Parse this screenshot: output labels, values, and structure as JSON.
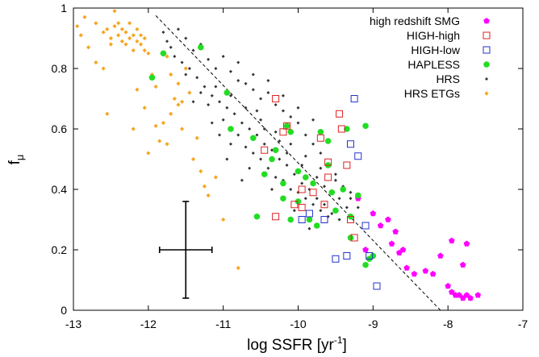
{
  "chart_data": {
    "type": "scatter",
    "xlabel_main": "log SSFR [yr",
    "xlabel_sup": "-1",
    "xlabel_end": "]",
    "ylabel_main": "f",
    "ylabel_sub": "μ",
    "xlim": [
      -13,
      -7
    ],
    "ylim": [
      0,
      1
    ],
    "xticks": [
      {
        "v": -13,
        "label": "-13"
      },
      {
        "v": -12,
        "label": "-12"
      },
      {
        "v": -11,
        "label": "-11"
      },
      {
        "v": -10,
        "label": "-10"
      },
      {
        "v": -9,
        "label": "-9"
      },
      {
        "v": -8,
        "label": "-8"
      },
      {
        "v": -7,
        "label": "-7"
      }
    ],
    "yticks": [
      {
        "v": 0,
        "label": "0"
      },
      {
        "v": 0.2,
        "label": "0.2"
      },
      {
        "v": 0.4,
        "label": "0.4"
      },
      {
        "v": 0.6,
        "label": "0.6"
      },
      {
        "v": 0.8,
        "label": "0.8"
      },
      {
        "v": 1,
        "label": "1"
      }
    ],
    "legend_position": "top-right",
    "grid": false,
    "fit_line": {
      "style": "dashed",
      "color": "#000000",
      "x": [
        -11.9,
        -8.1
      ],
      "y": [
        0.975,
        0
      ]
    },
    "error_bar": {
      "x": -11.5,
      "y": 0.2,
      "x_err": 0.35,
      "y_err": 0.16
    },
    "series": [
      {
        "name": "high redshift SMG",
        "marker": "pentagon",
        "color": "#ff00ff",
        "points": [
          [
            -9.2,
            0.37
          ],
          [
            -9.0,
            0.32
          ],
          [
            -8.9,
            0.28
          ],
          [
            -8.8,
            0.3
          ],
          [
            -8.75,
            0.22
          ],
          [
            -8.7,
            0.26
          ],
          [
            -8.65,
            0.19
          ],
          [
            -8.6,
            0.2
          ],
          [
            -8.55,
            0.14
          ],
          [
            -8.45,
            0.12
          ],
          [
            -8.3,
            0.13
          ],
          [
            -8.2,
            0.12
          ],
          [
            -8.0,
            0.08
          ],
          [
            -7.95,
            0.06
          ],
          [
            -7.9,
            0.05
          ],
          [
            -7.85,
            0.05
          ],
          [
            -7.8,
            0.04
          ],
          [
            -7.75,
            0.05
          ],
          [
            -7.7,
            0.04
          ],
          [
            -7.6,
            0.05
          ],
          [
            -7.75,
            0.22
          ],
          [
            -7.8,
            0.15
          ],
          [
            -7.95,
            0.23
          ],
          [
            -8.1,
            0.18
          ],
          [
            -9.1,
            0.2
          ]
        ]
      },
      {
        "name": "HIGH-high",
        "marker": "square-open",
        "color": "#dd2222",
        "points": [
          [
            -10.45,
            0.53
          ],
          [
            -10.3,
            0.7
          ],
          [
            -10.2,
            0.59
          ],
          [
            -10.3,
            0.31
          ],
          [
            -10.05,
            0.35
          ],
          [
            -9.95,
            0.34
          ],
          [
            -9.95,
            0.4
          ],
          [
            -9.8,
            0.39
          ],
          [
            -9.7,
            0.57
          ],
          [
            -9.65,
            0.35
          ],
          [
            -9.6,
            0.44
          ],
          [
            -9.45,
            0.65
          ],
          [
            -9.42,
            0.6
          ],
          [
            -9.35,
            0.48
          ],
          [
            -9.3,
            0.3
          ],
          [
            -9.25,
            0.24
          ],
          [
            -9.6,
            0.49
          ],
          [
            -10.15,
            0.61
          ]
        ]
      },
      {
        "name": "HIGH-low",
        "marker": "square-open",
        "color": "#2233cc",
        "points": [
          [
            -9.25,
            0.7
          ],
          [
            -9.3,
            0.55
          ],
          [
            -9.2,
            0.51
          ],
          [
            -9.1,
            0.28
          ],
          [
            -9.05,
            0.18
          ],
          [
            -8.95,
            0.08
          ],
          [
            -9.35,
            0.18
          ],
          [
            -9.5,
            0.17
          ],
          [
            -9.65,
            0.3
          ],
          [
            -9.85,
            0.32
          ],
          [
            -9.95,
            0.3
          ]
        ]
      },
      {
        "name": "HAPLESS",
        "marker": "circle",
        "color": "#22dd22",
        "points": [
          [
            -11.8,
            0.85
          ],
          [
            -11.3,
            0.87
          ],
          [
            -11.95,
            0.77
          ],
          [
            -10.95,
            0.72
          ],
          [
            -10.9,
            0.6
          ],
          [
            -10.6,
            0.57
          ],
          [
            -10.3,
            0.53
          ],
          [
            -10.35,
            0.5
          ],
          [
            -10.2,
            0.42
          ],
          [
            -10.15,
            0.61
          ],
          [
            -10.1,
            0.59
          ],
          [
            -10.0,
            0.36
          ],
          [
            -10.0,
            0.46
          ],
          [
            -9.9,
            0.44
          ],
          [
            -9.85,
            0.3
          ],
          [
            -9.7,
            0.59
          ],
          [
            -9.6,
            0.56
          ],
          [
            -9.6,
            0.48
          ],
          [
            -9.55,
            0.39
          ],
          [
            -9.5,
            0.33
          ],
          [
            -9.35,
            0.6
          ],
          [
            -9.4,
            0.4
          ],
          [
            -9.3,
            0.31
          ],
          [
            -9.2,
            0.38
          ],
          [
            -9.1,
            0.61
          ],
          [
            -9.05,
            0.17
          ],
          [
            -9.0,
            0.18
          ],
          [
            -10.55,
            0.31
          ],
          [
            -10.2,
            0.37
          ],
          [
            -10.1,
            0.3
          ],
          [
            -9.75,
            0.28
          ],
          [
            -9.3,
            0.24
          ],
          [
            -9.1,
            0.15
          ],
          [
            -10.45,
            0.45
          ],
          [
            -9.8,
            0.42
          ]
        ]
      },
      {
        "name": "HRS",
        "marker": "diamond-small",
        "color": "#333333",
        "points": [
          [
            -11.6,
            0.93
          ],
          [
            -11.5,
            0.9
          ],
          [
            -11.4,
            0.86
          ],
          [
            -11.3,
            0.88
          ],
          [
            -11.2,
            0.83
          ],
          [
            -11.1,
            0.8
          ],
          [
            -11.0,
            0.84
          ],
          [
            -10.9,
            0.79
          ],
          [
            -10.8,
            0.76
          ],
          [
            -10.7,
            0.75
          ],
          [
            -10.6,
            0.73
          ],
          [
            -10.5,
            0.7
          ],
          [
            -10.4,
            0.72
          ],
          [
            -10.3,
            0.68
          ],
          [
            -10.2,
            0.66
          ],
          [
            -10.1,
            0.64
          ],
          [
            -10.0,
            0.62
          ],
          [
            -9.9,
            0.58
          ],
          [
            -9.8,
            0.55
          ],
          [
            -9.7,
            0.52
          ],
          [
            -9.6,
            0.48
          ],
          [
            -9.5,
            0.45
          ],
          [
            -9.4,
            0.41
          ],
          [
            -9.3,
            0.37
          ],
          [
            -9.2,
            0.34
          ],
          [
            -11.7,
            0.87
          ],
          [
            -11.55,
            0.82
          ],
          [
            -11.45,
            0.8
          ],
          [
            -11.35,
            0.77
          ],
          [
            -11.25,
            0.74
          ],
          [
            -11.15,
            0.71
          ],
          [
            -11.05,
            0.69
          ],
          [
            -10.95,
            0.67
          ],
          [
            -10.85,
            0.65
          ],
          [
            -10.75,
            0.62
          ],
          [
            -10.65,
            0.6
          ],
          [
            -10.55,
            0.58
          ],
          [
            -10.45,
            0.55
          ],
          [
            -10.35,
            0.53
          ],
          [
            -10.25,
            0.5
          ],
          [
            -10.15,
            0.48
          ],
          [
            -10.05,
            0.45
          ],
          [
            -9.95,
            0.42
          ],
          [
            -9.85,
            0.4
          ],
          [
            -9.75,
            0.37
          ],
          [
            -9.65,
            0.35
          ],
          [
            -9.55,
            0.32
          ],
          [
            -9.45,
            0.3
          ],
          [
            -11.5,
            0.78
          ],
          [
            -11.2,
            0.68
          ],
          [
            -11.0,
            0.63
          ],
          [
            -10.8,
            0.58
          ],
          [
            -10.6,
            0.52
          ],
          [
            -10.4,
            0.47
          ],
          [
            -10.2,
            0.43
          ],
          [
            -10.0,
            0.39
          ],
          [
            -9.8,
            0.35
          ],
          [
            -9.6,
            0.31
          ],
          [
            -11.1,
            0.74
          ],
          [
            -10.9,
            0.71
          ],
          [
            -10.7,
            0.67
          ],
          [
            -10.5,
            0.63
          ],
          [
            -10.3,
            0.59
          ],
          [
            -10.1,
            0.55
          ],
          [
            -9.9,
            0.51
          ],
          [
            -9.7,
            0.47
          ],
          [
            -9.5,
            0.43
          ],
          [
            -9.3,
            0.39
          ],
          [
            -11.8,
            0.92
          ],
          [
            -11.75,
            0.89
          ],
          [
            -11.65,
            0.84
          ],
          [
            -10.8,
            0.82
          ],
          [
            -10.6,
            0.78
          ],
          [
            -10.4,
            0.76
          ],
          [
            -10.2,
            0.71
          ],
          [
            -10.0,
            0.67
          ],
          [
            -9.8,
            0.63
          ],
          [
            -10.7,
            0.54
          ],
          [
            -10.5,
            0.5
          ],
          [
            -10.3,
            0.44
          ],
          [
            -10.1,
            0.4
          ],
          [
            -9.9,
            0.37
          ],
          [
            -9.7,
            0.33
          ],
          [
            -10.9,
            0.55
          ],
          [
            -11.3,
            0.72
          ],
          [
            -11.4,
            0.69
          ],
          [
            -10.55,
            0.66
          ],
          [
            -10.45,
            0.6
          ],
          [
            -10.25,
            0.56
          ],
          [
            -10.15,
            0.52
          ],
          [
            -9.95,
            0.48
          ],
          [
            -9.75,
            0.44
          ],
          [
            -9.65,
            0.41
          ],
          [
            -9.45,
            0.37
          ],
          [
            -9.35,
            0.34
          ],
          [
            -10.65,
            0.47
          ],
          [
            -10.35,
            0.4
          ],
          [
            -10.05,
            0.33
          ],
          [
            -9.85,
            0.27
          ],
          [
            -10.75,
            0.43
          ],
          [
            -10.95,
            0.5
          ],
          [
            -11.05,
            0.58
          ],
          [
            -11.15,
            0.62
          ]
        ]
      },
      {
        "name": "HRS ETGs",
        "marker": "diamond",
        "color": "#f5a623",
        "points": [
          [
            -12.95,
            0.94
          ],
          [
            -12.85,
            0.97
          ],
          [
            -12.7,
            0.95
          ],
          [
            -12.6,
            0.92
          ],
          [
            -12.55,
            0.93
          ],
          [
            -12.5,
            0.9
          ],
          [
            -12.45,
            0.99
          ],
          [
            -12.4,
            0.95
          ],
          [
            -12.35,
            0.93
          ],
          [
            -12.3,
            0.92
          ],
          [
            -12.25,
            0.9
          ],
          [
            -12.2,
            0.91
          ],
          [
            -12.15,
            0.89
          ],
          [
            -12.1,
            0.88
          ],
          [
            -12.05,
            0.86
          ],
          [
            -12.0,
            0.85
          ],
          [
            -12.3,
            0.88
          ],
          [
            -12.2,
            0.86
          ],
          [
            -12.4,
            0.91
          ],
          [
            -12.15,
            0.93
          ],
          [
            -12.25,
            0.95
          ],
          [
            -12.35,
            0.89
          ],
          [
            -12.1,
            0.91
          ],
          [
            -12.05,
            0.9
          ],
          [
            -12.45,
            0.94
          ],
          [
            -12.5,
            0.88
          ],
          [
            -12.9,
            0.91
          ],
          [
            -12.8,
            0.87
          ],
          [
            -12.7,
            0.82
          ],
          [
            -12.6,
            0.8
          ],
          [
            -12.55,
            0.65
          ],
          [
            -12.2,
            0.6
          ],
          [
            -12.15,
            0.73
          ],
          [
            -12.05,
            0.67
          ],
          [
            -11.95,
            0.78
          ],
          [
            -11.9,
            0.74
          ],
          [
            -11.85,
            0.56
          ],
          [
            -11.8,
            0.62
          ],
          [
            -11.75,
            0.84
          ],
          [
            -11.7,
            0.78
          ],
          [
            -11.65,
            0.7
          ],
          [
            -11.6,
            0.75
          ],
          [
            -11.55,
            0.69
          ],
          [
            -11.5,
            0.8
          ],
          [
            -11.45,
            0.72
          ],
          [
            -11.4,
            0.5
          ],
          [
            -11.3,
            0.46
          ],
          [
            -11.25,
            0.41
          ],
          [
            -11.2,
            0.38
          ],
          [
            -11.1,
            0.44
          ],
          [
            -11.0,
            0.3
          ],
          [
            -10.8,
            0.14
          ],
          [
            -11.75,
            0.55
          ],
          [
            -12.0,
            0.52
          ],
          [
            -11.9,
            0.61
          ],
          [
            -11.7,
            0.65
          ],
          [
            -11.35,
            0.57
          ],
          [
            -11.6,
            0.68
          ],
          [
            -11.55,
            0.6
          ]
        ]
      }
    ]
  }
}
